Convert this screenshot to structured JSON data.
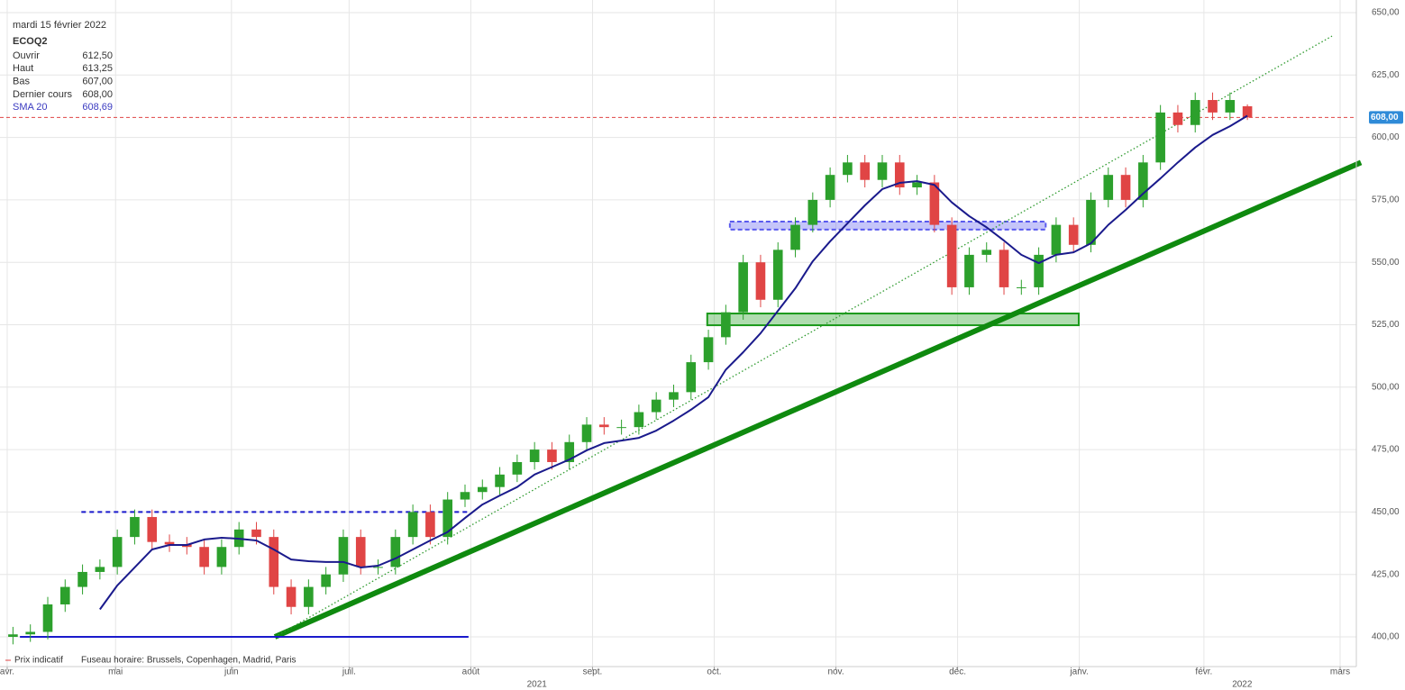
{
  "chart_data": {
    "type": "candlestick",
    "header": {
      "date": "mardi 15 février 2022",
      "rows": [
        {
          "label": "Ouvrir",
          "value": {
            "value": 612.5,
            "label": "612,50"
          }
        },
        {
          "label": "Haut",
          "value": {
            "value": 613.25,
            "label": "613,25"
          }
        },
        {
          "label": "Bas",
          "value": {
            "value": 607,
            "label": "607,00"
          }
        },
        {
          "label": "Dernier cours",
          "value": {
            "value": 608,
            "label": "608,00"
          }
        }
      ],
      "sma_value": {
        "value": 608.69,
        "label": "608,69"
      }
    },
    "footer": [
      "Prix indicatif",
      "Fuseau horaire: Brussels, Copenhagen, Madrid, Paris"
    ],
    "x": [
      1,
      4,
      7,
      10,
      13,
      16,
      19,
      22,
      25,
      28,
      31,
      34,
      37,
      40,
      43,
      46,
      49,
      52,
      55,
      58,
      61,
      64,
      67,
      70,
      73,
      76,
      79,
      82,
      85,
      88,
      91,
      94,
      97,
      100,
      103,
      106,
      109,
      112,
      115,
      118,
      121,
      124,
      127,
      130,
      133,
      136,
      139,
      142,
      145,
      148,
      151,
      154,
      157,
      160,
      163,
      166,
      169,
      172,
      175,
      178,
      181,
      184,
      187,
      190,
      193,
      196,
      199,
      202,
      205,
      208,
      211,
      214
    ],
    "series": [
      {
        "name": "ECOQ2",
        "up_color": "#2ca02c",
        "down_color": "#e04545",
        "open": [
          400,
          401,
          402,
          413,
          420,
          426,
          428,
          440,
          448,
          438,
          437,
          436,
          428,
          436,
          443,
          440,
          420,
          412,
          420,
          425,
          440,
          428,
          428,
          440,
          450,
          440,
          455,
          458,
          460,
          465,
          470,
          475,
          470,
          478,
          485,
          484,
          484,
          490,
          495,
          498,
          510,
          520,
          530,
          550,
          535,
          555,
          565,
          575,
          585,
          590,
          583,
          590,
          580,
          582,
          565,
          540,
          553,
          555,
          540,
          540,
          553,
          565,
          557,
          575,
          585,
          575,
          590,
          610,
          605,
          615,
          610,
          612.5
        ],
        "high": [
          404,
          405,
          416,
          423,
          429,
          431,
          443,
          451,
          451,
          441,
          440,
          439,
          439,
          446,
          446,
          443,
          423,
          423,
          428,
          443,
          443,
          431,
          443,
          453,
          453,
          458,
          461,
          463,
          468,
          473,
          478,
          478,
          481,
          488,
          488,
          487,
          493,
          498,
          501,
          513,
          523,
          533,
          553,
          553,
          558,
          568,
          578,
          588,
          593,
          593,
          593,
          593,
          585,
          585,
          568,
          556,
          558,
          558,
          543,
          556,
          568,
          568,
          578,
          588,
          588,
          593,
          613,
          613,
          618,
          618,
          618,
          613.25
        ],
        "low": [
          397,
          398,
          399,
          410,
          417,
          423,
          425,
          437,
          435,
          434,
          433,
          425,
          425,
          433,
          437,
          417,
          409,
          409,
          417,
          422,
          425,
          425,
          425,
          437,
          437,
          437,
          452,
          455,
          457,
          462,
          467,
          467,
          467,
          475,
          481,
          481,
          481,
          487,
          492,
          495,
          507,
          517,
          527,
          532,
          532,
          552,
          562,
          572,
          582,
          580,
          580,
          577,
          577,
          562,
          537,
          537,
          550,
          537,
          537,
          537,
          550,
          554,
          554,
          572,
          572,
          572,
          587,
          602,
          602,
          607,
          607,
          607
        ],
        "close": [
          401,
          402,
          413,
          420,
          426,
          428,
          440,
          448,
          438,
          437,
          436,
          428,
          436,
          443,
          440,
          420,
          412,
          420,
          425,
          440,
          428,
          428,
          440,
          450,
          440,
          455,
          458,
          460,
          465,
          470,
          475,
          470,
          478,
          485,
          484,
          484,
          490,
          495,
          498,
          510,
          520,
          530,
          550,
          535,
          555,
          565,
          575,
          585,
          590,
          583,
          590,
          580,
          582,
          565,
          540,
          553,
          555,
          540,
          540,
          553,
          565,
          557,
          575,
          585,
          575,
          590,
          610,
          605,
          615,
          610,
          615,
          608
        ]
      },
      {
        "name": "SMA 20",
        "color": "#1a1a8c",
        "values": [
          null,
          null,
          null,
          null,
          null,
          411,
          420.6,
          427.8,
          435,
          436.8,
          436.8,
          439,
          439.7,
          439.3,
          438.6,
          435,
          431,
          430.3,
          430,
          430,
          427.8,
          428.5,
          431.4,
          435,
          438.6,
          442,
          447.6,
          453,
          456.6,
          460,
          465,
          468,
          471,
          474.7,
          477.6,
          478.6,
          479.7,
          482.6,
          486.6,
          491,
          496,
          507,
          514,
          521.6,
          530.6,
          539.6,
          550.4,
          558.4,
          565.6,
          572.8,
          579.3,
          581.8,
          582.5,
          581,
          574,
          568.5,
          564,
          558.7,
          553,
          549.7,
          553,
          554,
          557.6,
          565,
          571,
          577.5,
          583.6,
          590,
          596,
          601,
          604.5,
          608.69
        ]
      }
    ],
    "last_price": {
      "value": 608,
      "label": "608,00",
      "color": "#e04545",
      "box_color": "#2f8bd8"
    },
    "lines": [
      {
        "x": [
          46.2,
          233.6
        ],
        "y": [
          400,
          590
        ],
        "style": "thick",
        "color": "#0f8a0f"
      },
      {
        "x": [
          46.2,
          228.6
        ],
        "y": [
          400,
          640.6
        ],
        "style": "dotted",
        "color": "#2e9a2e"
      },
      {
        "x": [
          2.2,
          79.6
        ],
        "y": [
          400,
          400
        ],
        "style": "solid",
        "color": "#1a1acc"
      },
      {
        "x": [
          12.8,
          79.6
        ],
        "y": [
          450,
          450
        ],
        "style": "dashed",
        "color": "#1a1acc"
      }
    ],
    "zones": [
      {
        "x": [
          124.7,
          179.2
        ],
        "y": [
          563.1,
          566.3
        ],
        "color": "#5a5aee"
      },
      {
        "x": [
          120.8,
          184.9
        ],
        "y": [
          524.8,
          529.5
        ],
        "color": "#1a9a1a"
      }
    ],
    "xlim": [
      -1.24,
      232.8
    ],
    "ylim": [
      388.1,
      655.05
    ],
    "xticks": [
      {
        "value": 0,
        "label": "avr."
      },
      {
        "value": 18.7,
        "label": "mai"
      },
      {
        "value": 38.7,
        "label": "juin"
      },
      {
        "value": 59,
        "label": "juil."
      },
      {
        "value": 80,
        "label": "août"
      },
      {
        "value": 101,
        "label": "sept."
      },
      {
        "value": 122,
        "label": "oct."
      },
      {
        "value": 143,
        "label": "nov."
      },
      {
        "value": 164,
        "label": "déc."
      },
      {
        "value": 185,
        "label": "janv."
      },
      {
        "value": 206.5,
        "label": "févr."
      },
      {
        "value": 230,
        "label": "mars"
      }
    ],
    "year_ticks": [
      {
        "value": 91.4,
        "label": "2021"
      },
      {
        "value": 213.1,
        "label": "2022"
      }
    ],
    "yticks": [
      {
        "value": 400,
        "label": "400,00"
      },
      {
        "value": 425,
        "label": "425,00"
      },
      {
        "value": 450,
        "label": "450,00"
      },
      {
        "value": 475,
        "label": "475,00"
      },
      {
        "value": 500,
        "label": "500,00"
      },
      {
        "value": 525,
        "label": "525,00"
      },
      {
        "value": 550,
        "label": "550,00"
      },
      {
        "value": 575,
        "label": "575,00"
      },
      {
        "value": 600,
        "label": "600,00"
      },
      {
        "value": 625,
        "label": "625,00"
      },
      {
        "value": 650,
        "label": "650,00"
      }
    ],
    "grid": true
  }
}
